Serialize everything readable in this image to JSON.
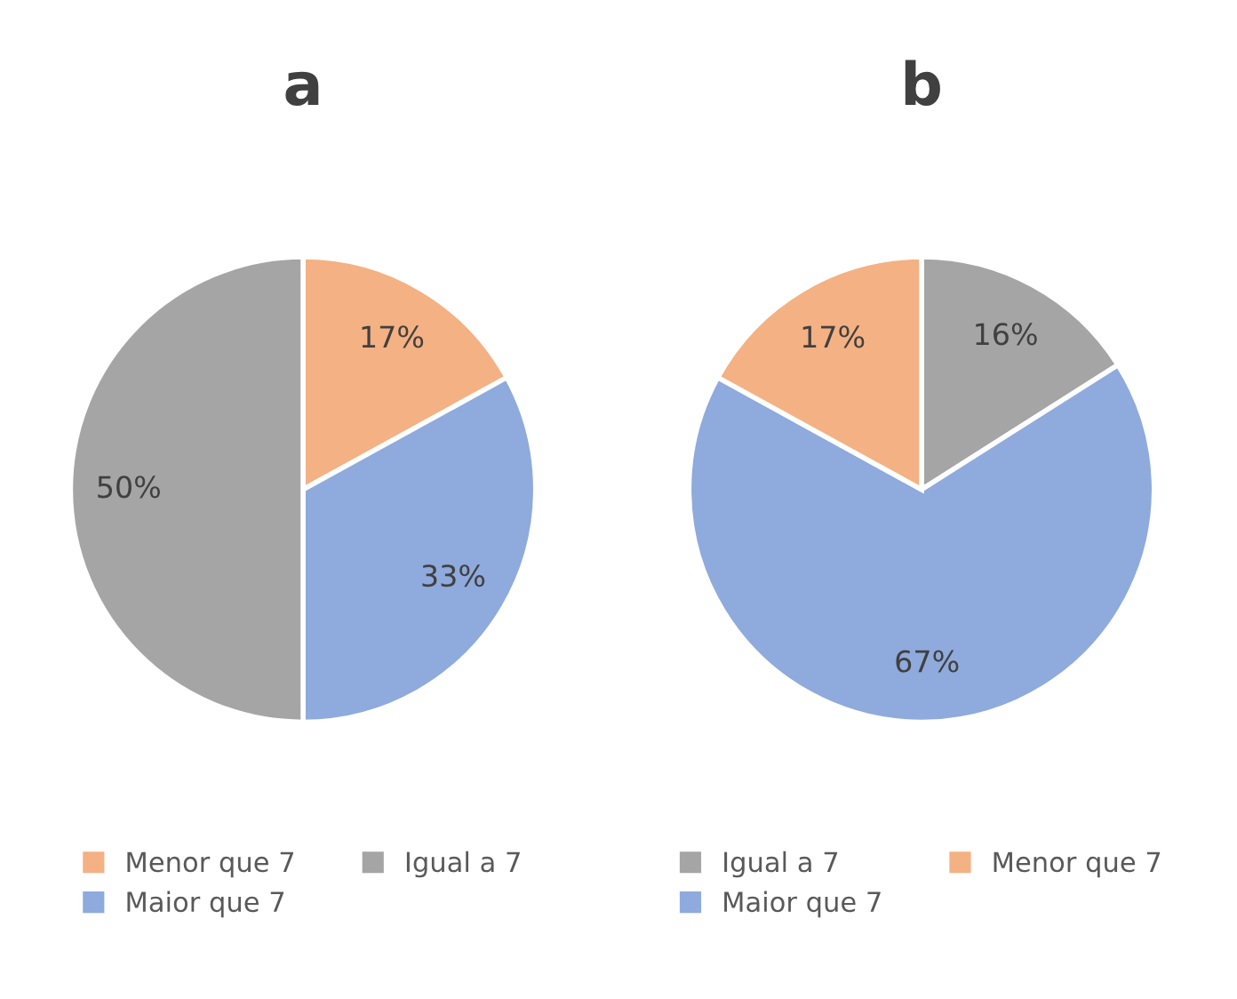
{
  "chart_data": [
    {
      "type": "pie",
      "title": "a",
      "categories": [
        "Menor que 7",
        "Maior que 7",
        "Igual a 7"
      ],
      "values": [
        17,
        33,
        50
      ],
      "colors": [
        "#f4b183",
        "#8faadc",
        "#a5a5a5"
      ],
      "value_labels": [
        "17%",
        "33%",
        "50%"
      ],
      "legend": "bottom"
    },
    {
      "type": "pie",
      "title": "b",
      "categories": [
        "Igual a 7",
        "Maior que 7",
        "Menor que 7"
      ],
      "values": [
        16,
        67,
        17
      ],
      "colors": [
        "#a5a5a5",
        "#8faadc",
        "#f4b183"
      ],
      "value_labels": [
        "16%",
        "67%",
        "17%"
      ],
      "legend": "bottom"
    }
  ]
}
